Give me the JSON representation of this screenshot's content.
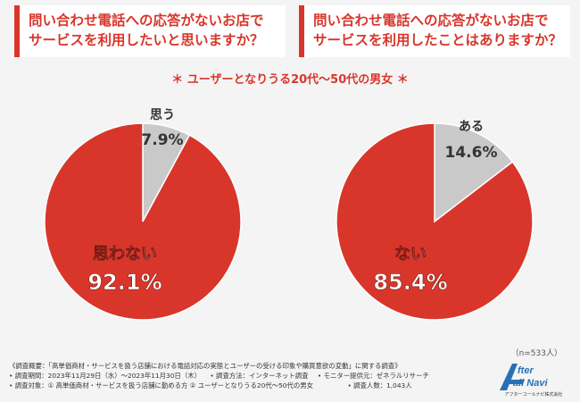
{
  "questions": {
    "left": [
      "問い合わせ電話への応答がないお店で",
      "サービスを利用したいと思いますか？"
    ],
    "right": [
      "問い合わせ電話への応答がないお店で",
      "サービスを利用したことはありますか？"
    ]
  },
  "subtitle": "＊ ユーザーとなりうる20代〜50代の男女 ＊",
  "chart_data": [
    {
      "type": "pie",
      "title": "問い合わせ電話への応答がないお店でサービスを利用したいと思いますか？",
      "labels": [
        "思う",
        "思わない"
      ],
      "values": [
        7.9,
        92.1
      ],
      "value_labels": [
        "7.9%",
        "92.1%"
      ],
      "colors": [
        "#c9c9c9",
        "#d9362b"
      ]
    },
    {
      "type": "pie",
      "title": "問い合わせ電話への応答がないお店でサービスを利用したことはありますか？",
      "labels": [
        "ある",
        "ない"
      ],
      "values": [
        14.6,
        85.4
      ],
      "value_labels": [
        "14.6%",
        "85.4%"
      ],
      "colors": [
        "#c9c9c9",
        "#d9362b"
      ]
    }
  ],
  "sample_note": "（n=533人）",
  "footer": {
    "line1": "《調査概要：「高単価商材・サービスを扱う店舗における電話対応の実態とユーザーの受ける印象や購買意欲の変動」に関する調査》",
    "line2a": "• 調査期間：2023年11月29日（水）〜2023年11月30日（木）",
    "line2b": "• 調査方法：インターネット調査",
    "line2c": "• モニター提供元：ゼネラルリサーチ",
    "line3a": "• 調査対象：① 高単価商材・サービスを扱う店舗に勤める方 ② ユーザーとなりうる20代〜50代の男女",
    "line3b": "• 調査人数：1,043人"
  },
  "logo": {
    "line1": "fter",
    "line2": "all Navi",
    "company": "アフターコールナビ株式会社"
  },
  "colors": {
    "accent": "#d9362b",
    "grey": "#c9c9c9",
    "background": "#f4f4f4"
  }
}
